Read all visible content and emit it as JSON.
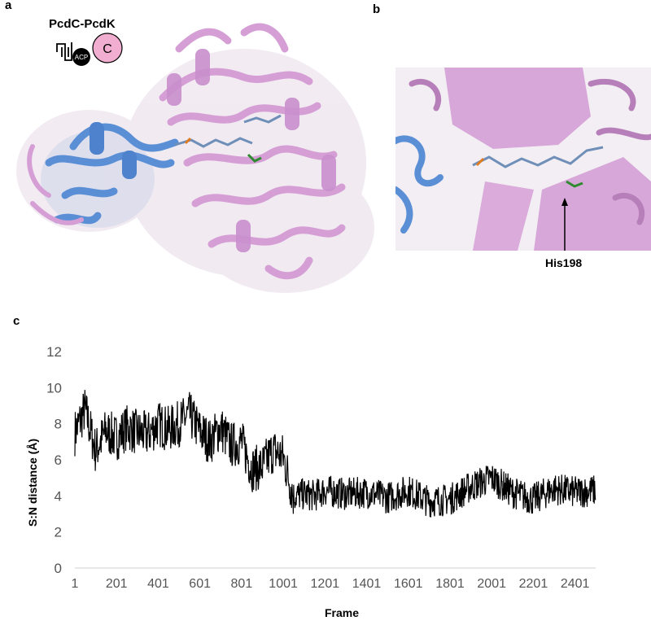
{
  "panels": {
    "a": {
      "letter": "a",
      "legend": {
        "title": "PcdC-PcdK",
        "acp_label": "ACP",
        "c_label": "C"
      }
    },
    "b": {
      "letter": "b",
      "callout": "His198"
    },
    "c": {
      "letter": "c"
    }
  },
  "colors": {
    "pcdc_pink": "#d59fd6",
    "acp_blue": "#5a8fd6",
    "trace": "#000000"
  },
  "chart_data": {
    "type": "line",
    "title": "",
    "xlabel": "Frame",
    "ylabel": "S:N distance (Å)",
    "xlim": [
      1,
      2500
    ],
    "ylim": [
      0,
      12
    ],
    "x_ticks": [
      "1",
      "201",
      "401",
      "601",
      "801",
      "1001",
      "1201",
      "1401",
      "1601",
      "1801",
      "2001",
      "2201",
      "2401"
    ],
    "y_ticks": [
      "0",
      "2",
      "4",
      "6",
      "8",
      "10",
      "12"
    ],
    "grid": false,
    "series": [
      {
        "name": "",
        "x": [
          1,
          50,
          100,
          150,
          200,
          250,
          300,
          350,
          400,
          450,
          500,
          550,
          600,
          650,
          700,
          750,
          800,
          850,
          900,
          950,
          1000,
          1050,
          1100,
          1150,
          1200,
          1300,
          1400,
          1500,
          1600,
          1700,
          1800,
          1900,
          2000,
          2100,
          2200,
          2300,
          2400,
          2500
        ],
        "y": [
          7.5,
          8.8,
          6.5,
          7.6,
          7.2,
          7.8,
          7.5,
          7.4,
          8.0,
          7.7,
          8.0,
          8.5,
          7.6,
          7.0,
          7.8,
          6.8,
          7.0,
          5.5,
          5.6,
          6.5,
          6.2,
          4.0,
          4.1,
          4.0,
          4.3,
          4.1,
          4.2,
          3.9,
          4.3,
          3.7,
          3.8,
          4.5,
          5.0,
          4.2,
          3.8,
          4.4,
          4.2,
          4.3
        ]
      }
    ]
  }
}
